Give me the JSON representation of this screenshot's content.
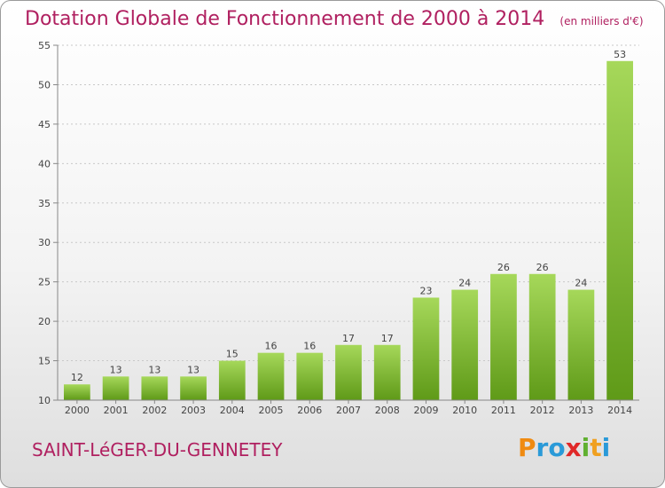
{
  "chart_data": {
    "type": "bar",
    "title": "Dotation Globale de Fonctionnement de 2000 à 2014",
    "unit_label": "(en milliers d'€)",
    "categories": [
      "2000",
      "2001",
      "2002",
      "2003",
      "2004",
      "2005",
      "2006",
      "2007",
      "2008",
      "2009",
      "2010",
      "2011",
      "2012",
      "2013",
      "2014"
    ],
    "values": [
      12,
      13,
      13,
      13,
      15,
      16,
      16,
      17,
      17,
      23,
      24,
      26,
      26,
      24,
      53
    ],
    "ylim": [
      10,
      55
    ],
    "yticks": [
      10,
      15,
      20,
      25,
      30,
      35,
      40,
      45,
      50,
      55
    ],
    "xlabel": "",
    "ylabel": "",
    "grid": "horizontal",
    "bar_color_light": "#a6d85a",
    "bar_color_dark": "#5f9a18"
  },
  "footer": {
    "commune": "SAINT-LéGER-DU-GENNETEY",
    "logo_letters": [
      "P",
      "r",
      "o",
      "x",
      "i",
      "t",
      "i"
    ],
    "logo_colors": [
      "#f08a10",
      "#2a9ad8",
      "#2a9ad8",
      "#e02828",
      "#60b030",
      "#f0a020",
      "#2a9ad8"
    ]
  }
}
